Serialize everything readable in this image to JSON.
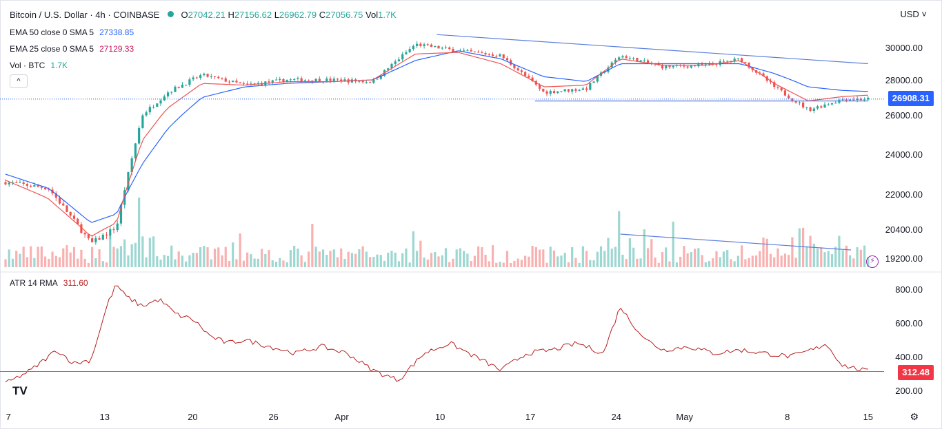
{
  "header": {
    "symbol": "Bitcoin / U.S. Dollar · 4h · COINBASE",
    "o_label": "O",
    "o": "27042.21",
    "h_label": "H",
    "h": "27156.62",
    "l_label": "L",
    "l": "26962.79",
    "c_label": "C",
    "c": "27056.75",
    "vol_label": "Vol",
    "vol": "1.7K",
    "currency": "USD",
    "collapse_label": "^"
  },
  "indicators": {
    "ema50": {
      "label": "EMA 50 close 0 SMA 5",
      "value": "27338.85"
    },
    "ema25": {
      "label": "EMA 25 close 0 SMA 5",
      "value": "27129.33"
    },
    "vol": {
      "label": "Vol · BTC",
      "value": "1.7K"
    },
    "atr": {
      "label": "ATR 14 RMA",
      "value": "311.60"
    }
  },
  "tags": {
    "last_price": "26908.31",
    "atr_value": "312.48"
  },
  "logo": "TV",
  "colors": {
    "up": "#26a69a",
    "down": "#ef5350",
    "ema50": "#2962ff",
    "ema25": "#ef5350",
    "atr": "#b71c1c",
    "trendline": "#5b7fdc"
  },
  "chart_data": [
    {
      "type": "candlestick",
      "title": "Bitcoin / U.S. Dollar · 4h · COINBASE",
      "x_ticks": [
        "7",
        "13",
        "20",
        "26",
        "Apr",
        "10",
        "17",
        "24",
        "May",
        "8",
        "15"
      ],
      "y_ticks": [
        19200,
        20400,
        22000,
        24000,
        26000,
        28000,
        30000
      ],
      "ylim": [
        18800,
        31200
      ],
      "anchors": {
        "x": [
          0,
          5,
          10,
          13,
          16,
          19,
          23,
          28,
          33,
          38,
          43,
          48,
          53,
          58,
          63,
          68,
          72,
          77,
          82,
          86,
          90,
          94,
          98,
          101
        ],
        "close": [
          22600,
          22300,
          19800,
          20500,
          26000,
          27300,
          28300,
          27700,
          28000,
          28000,
          27900,
          30200,
          29800,
          29500,
          27300,
          27500,
          29500,
          28800,
          28900,
          29300,
          27600,
          26300,
          26900,
          26908
        ]
      },
      "last_price": 26908.31,
      "ema50": [
        23000,
        22300,
        20700,
        21100,
        23500,
        25300,
        27000,
        27600,
        27800,
        27900,
        28000,
        29200,
        29800,
        29300,
        28200,
        27900,
        29000,
        29000,
        29000,
        29000,
        28400,
        27600,
        27400,
        27338.85
      ],
      "ema25": [
        22700,
        21800,
        20100,
        20700,
        24700,
        26400,
        27800,
        27700,
        27900,
        27900,
        28000,
        29600,
        29700,
        29000,
        27600,
        27700,
        29300,
        28900,
        28900,
        29200,
        27800,
        26800,
        27050,
        27129.33
      ],
      "trendlines": [
        {
          "from": [
            50.5,
            30800
          ],
          "to": [
            101,
            29000
          ]
        },
        {
          "from": [
            62,
            26800
          ],
          "to": [
            101,
            26800
          ]
        }
      ],
      "volume_trendline": {
        "from": [
          72,
          "high"
        ],
        "to": [
          99,
          "low"
        ]
      }
    },
    {
      "type": "line",
      "title": "ATR 14 RMA",
      "y_ticks": [
        200,
        400,
        600,
        800
      ],
      "ylim": [
        120,
        860
      ],
      "x": [
        0,
        3,
        6,
        8,
        10,
        12,
        13,
        14,
        16,
        18,
        20,
        22,
        24,
        26,
        28,
        31,
        34,
        37,
        40,
        43,
        46,
        49,
        52,
        55,
        58,
        61,
        64,
        67,
        70,
        71,
        72,
        73,
        75,
        77,
        80,
        83,
        86,
        89,
        92,
        95,
        96,
        98,
        101
      ],
      "y": [
        240,
        320,
        440,
        360,
        380,
        720,
        830,
        760,
        700,
        740,
        650,
        620,
        520,
        480,
        500,
        460,
        420,
        460,
        420,
        320,
        260,
        420,
        480,
        400,
        320,
        420,
        440,
        480,
        420,
        560,
        700,
        620,
        500,
        440,
        460,
        420,
        440,
        420,
        400,
        450,
        480,
        350,
        312
      ]
    }
  ]
}
